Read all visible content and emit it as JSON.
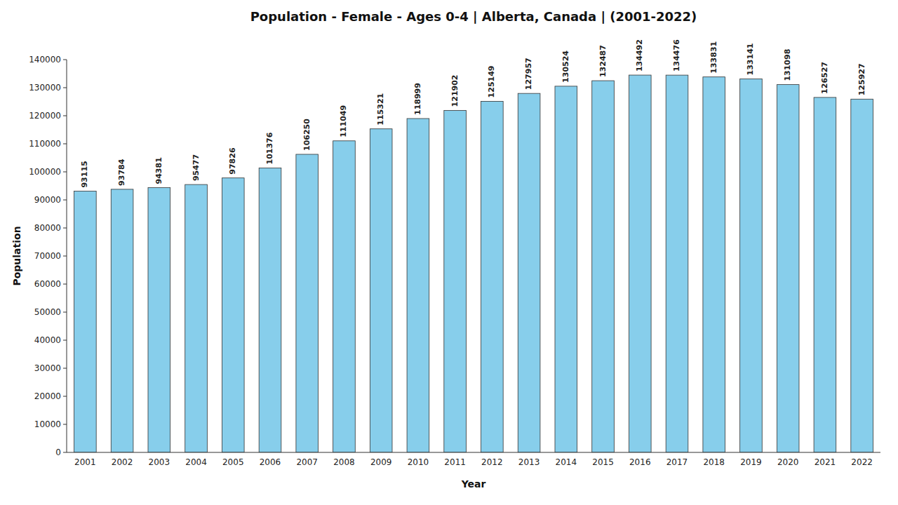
{
  "chart_data": {
    "type": "bar",
    "title": "Population - Female - Ages 0-4 | Alberta, Canada |   (2001-2022)",
    "xlabel": "Year",
    "ylabel": "Population",
    "categories": [
      "2001",
      "2002",
      "2003",
      "2004",
      "2005",
      "2006",
      "2007",
      "2008",
      "2009",
      "2010",
      "2011",
      "2012",
      "2013",
      "2014",
      "2015",
      "2016",
      "2017",
      "2018",
      "2019",
      "2020",
      "2021",
      "2022"
    ],
    "values": [
      93115,
      93784,
      94381,
      95477,
      97826,
      101376,
      106250,
      111049,
      115321,
      118999,
      121902,
      125149,
      127957,
      130524,
      132487,
      134492,
      134476,
      133831,
      133141,
      131098,
      126527,
      125927
    ],
    "color": "#87CEEB",
    "ylim": [
      0,
      140000
    ],
    "yticks": [
      0,
      10000,
      20000,
      30000,
      40000,
      50000,
      60000,
      70000,
      80000,
      90000,
      100000,
      110000,
      120000,
      130000,
      140000
    ],
    "data_labels": true,
    "grid": false
  }
}
